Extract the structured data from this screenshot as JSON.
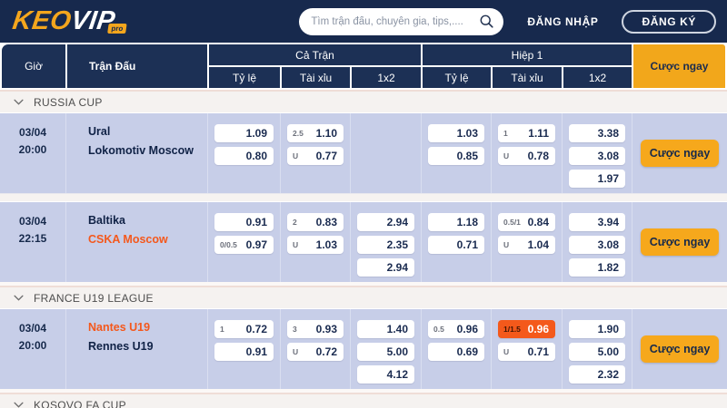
{
  "colors": {
    "navy": "#17294D",
    "header_cell_navy": "#1C3055",
    "accent_orange": "#F2A71B",
    "button_orange": "#F6A81C",
    "highlight_cell_orange": "#F4591B",
    "team_highlight_orange": "#F4581C",
    "row_background": "#C7CEE8"
  },
  "header": {
    "logo": {
      "keo": "KEO",
      "vip": "VIP",
      "pro": "pro"
    },
    "search": {
      "placeholder": "Tìm trận đấu, chuyên gia, tips,....",
      "icon": "magnifier"
    },
    "login_label": "ĐĂNG NHẬP",
    "register_label": "ĐĂNG KÝ"
  },
  "table_header": {
    "time": "Giờ",
    "match": "Trận Đấu",
    "full_match": "Cả Trận",
    "half1": "Hiệp 1",
    "sub_columns": [
      "Tỷ lệ",
      "Tài xỉu",
      "1x2"
    ],
    "bet_now": "Cược ngay"
  },
  "sections": [
    {
      "league": "RUSSIA CUP",
      "matches": [
        {
          "date": "03/04",
          "time": "20:00",
          "home": {
            "name": "Ural",
            "highlighted": false
          },
          "away": {
            "name": "Lokomotiv Moscow",
            "highlighted": false
          },
          "odds": {
            "ft_hdp": [
              {
                "label": "",
                "value": "1.09"
              },
              {
                "label": "",
                "value": "0.80"
              }
            ],
            "ft_ou": [
              {
                "label": "2.5",
                "value": "1.10"
              },
              {
                "label": "U",
                "value": "0.77"
              }
            ],
            "ft_1x2": [],
            "h1_hdp": [
              {
                "label": "",
                "value": "1.03"
              },
              {
                "label": "",
                "value": "0.85"
              }
            ],
            "h1_ou": [
              {
                "label": "1",
                "value": "1.11"
              },
              {
                "label": "U",
                "value": "0.78"
              }
            ],
            "h1_1x2": [
              {
                "label": "",
                "value": "3.38"
              },
              {
                "label": "",
                "value": "3.08"
              },
              {
                "label": "",
                "value": "1.97"
              }
            ]
          },
          "bet_label": "Cược ngay"
        },
        {
          "date": "03/04",
          "time": "22:15",
          "home": {
            "name": "Baltika",
            "highlighted": false
          },
          "away": {
            "name": "CSKA Moscow",
            "highlighted": true
          },
          "odds": {
            "ft_hdp": [
              {
                "label": "",
                "value": "0.91"
              },
              {
                "label": "0/0.5",
                "value": "0.97"
              }
            ],
            "ft_ou": [
              {
                "label": "2",
                "value": "0.83"
              },
              {
                "label": "U",
                "value": "1.03"
              }
            ],
            "ft_1x2": [
              {
                "label": "",
                "value": "2.94"
              },
              {
                "label": "",
                "value": "2.35"
              },
              {
                "label": "",
                "value": "2.94"
              }
            ],
            "h1_hdp": [
              {
                "label": "",
                "value": "1.18"
              },
              {
                "label": "",
                "value": "0.71"
              }
            ],
            "h1_ou": [
              {
                "label": "0.5/1",
                "value": "0.84"
              },
              {
                "label": "U",
                "value": "1.04"
              }
            ],
            "h1_1x2": [
              {
                "label": "",
                "value": "3.94"
              },
              {
                "label": "",
                "value": "3.08"
              },
              {
                "label": "",
                "value": "1.82"
              }
            ]
          },
          "bet_label": "Cược ngay"
        }
      ]
    },
    {
      "league": "FRANCE U19 LEAGUE",
      "matches": [
        {
          "date": "03/04",
          "time": "20:00",
          "home": {
            "name": "Nantes U19",
            "highlighted": true
          },
          "away": {
            "name": "Rennes U19",
            "highlighted": false
          },
          "odds": {
            "ft_hdp": [
              {
                "label": "1",
                "value": "0.72"
              },
              {
                "label": "",
                "value": "0.91"
              }
            ],
            "ft_ou": [
              {
                "label": "3",
                "value": "0.93"
              },
              {
                "label": "U",
                "value": "0.72"
              }
            ],
            "ft_1x2": [
              {
                "label": "",
                "value": "1.40"
              },
              {
                "label": "",
                "value": "5.00"
              },
              {
                "label": "",
                "value": "4.12"
              }
            ],
            "h1_hdp": [
              {
                "label": "0.5",
                "value": "0.96"
              },
              {
                "label": "",
                "value": "0.69"
              }
            ],
            "h1_ou": [
              {
                "label": "1/1.5",
                "value": "0.96",
                "highlight": true
              },
              {
                "label": "U",
                "value": "0.71"
              }
            ],
            "h1_1x2": [
              {
                "label": "",
                "value": "1.90"
              },
              {
                "label": "",
                "value": "5.00"
              },
              {
                "label": "",
                "value": "2.32"
              }
            ]
          },
          "bet_label": "Cược ngay"
        }
      ]
    },
    {
      "league": "KOSOVO FA CUP",
      "matches": []
    }
  ]
}
